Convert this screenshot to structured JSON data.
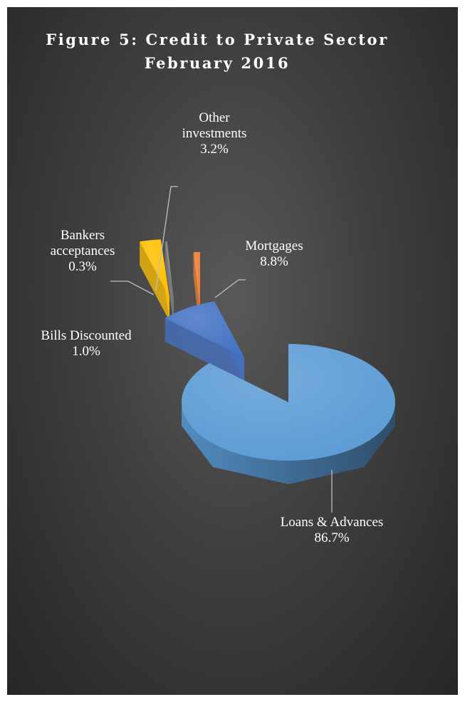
{
  "chart_data": {
    "type": "pie",
    "style": "3d-exploded",
    "title": "Figure 5: Credit to Private Sector",
    "subtitle": "February 2016",
    "categories": [
      "Loans & Advances",
      "Mortgages",
      "Other investments",
      "Bankers acceptances",
      "Bills Discounted"
    ],
    "values": [
      86.7,
      8.8,
      3.2,
      0.3,
      1.0
    ],
    "value_labels": [
      "86.7%",
      "8.8%",
      "3.2%",
      "0.3%",
      "1.0%"
    ],
    "colors": [
      "#5b9bd5",
      "#4472c4",
      "#ffc000",
      "#7f7f7f",
      "#ed7d31"
    ],
    "label_lines": [
      [
        "Loans & Advances",
        "86.7%"
      ],
      [
        "Mortgages",
        "8.8%"
      ],
      [
        "Other",
        "investments",
        "3.2%"
      ],
      [
        "Bankers",
        "acceptances",
        "0.3%"
      ],
      [
        "Bills Discounted",
        "1.0%"
      ]
    ],
    "background": "#404040",
    "legend": "none"
  }
}
